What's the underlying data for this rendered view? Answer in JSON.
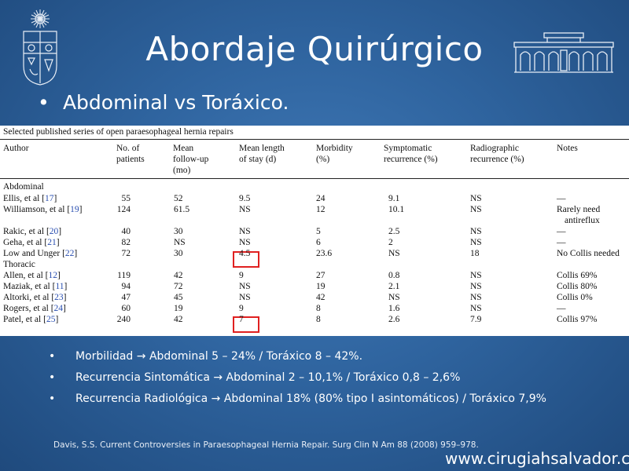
{
  "slide": {
    "title": "Abordaje Quirúrgico",
    "bullet": "Abdominal vs Toráxico.",
    "bullet_marker": "•"
  },
  "table": {
    "caption": "Selected published series of open paraesophageal hernia repairs",
    "headers": {
      "author": [
        "",
        "",
        "Author"
      ],
      "patients": [
        "",
        "No. of",
        "patients"
      ],
      "followup": [
        "Mean",
        "follow-up",
        "(mo)"
      ],
      "stay": [
        "",
        "Mean length",
        "of stay (d)"
      ],
      "morbidity": [
        "",
        "Morbidity",
        "(%)"
      ],
      "symptomatic": [
        "",
        "Symptomatic",
        "recurrence (%)"
      ],
      "radiographic": [
        "",
        "Radiographic",
        "recurrence (%)"
      ],
      "notes": [
        "",
        "",
        "Notes"
      ]
    },
    "sections": {
      "abdominal": "Abdominal",
      "thoracic": "Thoracic"
    },
    "rows": [
      {
        "author": "Ellis, et al",
        "ref": "17",
        "patients": "55",
        "followup": "52",
        "stay": "9.5",
        "morbidity": "24",
        "symptomatic": "9.1",
        "radiographic": "NS",
        "notes": "—",
        "notes2": ""
      },
      {
        "author": "Williamson, et al",
        "ref": "19",
        "patients": "124",
        "followup": "61.5",
        "stay": "NS",
        "morbidity": "12",
        "symptomatic": "10.1",
        "radiographic": "NS",
        "notes": "Rarely need",
        "notes2": "antireflux"
      },
      {
        "author": "Rakic, et al",
        "ref": "20",
        "patients": "40",
        "followup": "30",
        "stay": "NS",
        "morbidity": "5",
        "symptomatic": "2.5",
        "radiographic": "NS",
        "notes": "—",
        "notes2": ""
      },
      {
        "author": "Geha, et al",
        "ref": "21",
        "patients": "82",
        "followup": "NS",
        "stay": "NS",
        "morbidity": "6",
        "symptomatic": "2",
        "radiographic": "NS",
        "notes": "—",
        "notes2": ""
      },
      {
        "author": "Low and Unger",
        "ref": "22",
        "patients": "72",
        "followup": "30",
        "stay": "4.5",
        "morbidity": "23.6",
        "symptomatic": "NS",
        "radiographic": "18",
        "notes": "No Collis needed",
        "notes2": ""
      },
      {
        "author": "Allen, et al",
        "ref": "12",
        "patients": "119",
        "followup": "42",
        "stay": "9",
        "morbidity": "27",
        "symptomatic": "0.8",
        "radiographic": "NS",
        "notes": "Collis 69%",
        "notes2": ""
      },
      {
        "author": "Maziak, et al",
        "ref": "11",
        "patients": "94",
        "followup": "72",
        "stay": "NS",
        "morbidity": "19",
        "symptomatic": "2.1",
        "radiographic": "NS",
        "notes": "Collis 80%",
        "notes2": ""
      },
      {
        "author": "Altorki, et al",
        "ref": "23",
        "patients": "47",
        "followup": "45",
        "stay": "NS",
        "morbidity": "42",
        "symptomatic": "NS",
        "radiographic": "NS",
        "notes": "Collis 0%",
        "notes2": ""
      },
      {
        "author": "Rogers, et al",
        "ref": "24",
        "patients": "60",
        "followup": "19",
        "stay": "9",
        "morbidity": "8",
        "symptomatic": "1.6",
        "radiographic": "NS",
        "notes": "—",
        "notes2": ""
      },
      {
        "author": "Patel, et al",
        "ref": "25",
        "patients": "240",
        "followup": "42",
        "stay": "7",
        "morbidity": "8",
        "symptomatic": "2.6",
        "radiographic": "7.9",
        "notes": "Collis 97%",
        "notes2": ""
      }
    ],
    "highlight_color": "#e02020"
  },
  "sub_bullets": [
    {
      "marker": "•",
      "text": "Morbilidad → Abdominal 5 – 24% / Toráxico 8 – 42%."
    },
    {
      "marker": "•",
      "text": "Recurrencia Sintomática → Abdominal 2 – 10,1% / Toráxico 0,8 – 2,6%"
    },
    {
      "marker": "•",
      "text": "Recurrencia Radiológica → Abdominal 18% (80% tipo I asintomáticos) / Toráxico 7,9%"
    }
  ],
  "citation": "Davis, S.S. Current Controversies in Paraesophageal Hernia Repair. Surg Clin N Am 88 (2008) 959–978.",
  "website": "www.cirugiahsalvador.cl",
  "logos": {
    "left": "university-crest-icon",
    "right": "hospital-building-icon"
  },
  "colors": {
    "background": "#2f649f",
    "text": "#ffffff",
    "ref_link": "#2a4fb0"
  }
}
